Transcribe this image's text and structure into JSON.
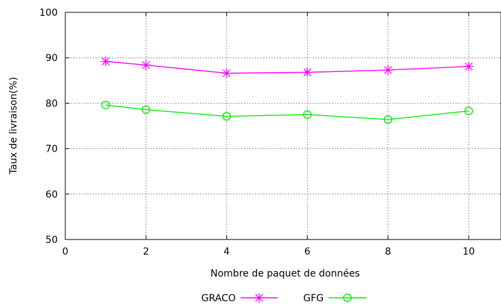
{
  "chart_data": {
    "type": "line",
    "title": "",
    "xlabel": "Nombre de paquet de données",
    "ylabel": "Taux de livraison(%)",
    "xlim": [
      0,
      10.8
    ],
    "ylim": [
      50,
      100
    ],
    "xticks": [
      0,
      2,
      4,
      6,
      8,
      10
    ],
    "yticks": [
      50,
      60,
      70,
      80,
      90,
      100
    ],
    "grid": true,
    "legend_position": "bottom",
    "series": [
      {
        "name": "GRACO",
        "color": "#ff00ff",
        "marker": "asterisk",
        "x": [
          1,
          2,
          4,
          6,
          8,
          10
        ],
        "y": [
          89.2,
          88.4,
          86.6,
          86.8,
          87.3,
          88.1
        ]
      },
      {
        "name": "GFG",
        "color": "#00ee00",
        "marker": "circle",
        "x": [
          1,
          2,
          4,
          6,
          8,
          10
        ],
        "y": [
          79.6,
          78.6,
          77.1,
          77.5,
          76.4,
          78.3
        ]
      }
    ]
  }
}
